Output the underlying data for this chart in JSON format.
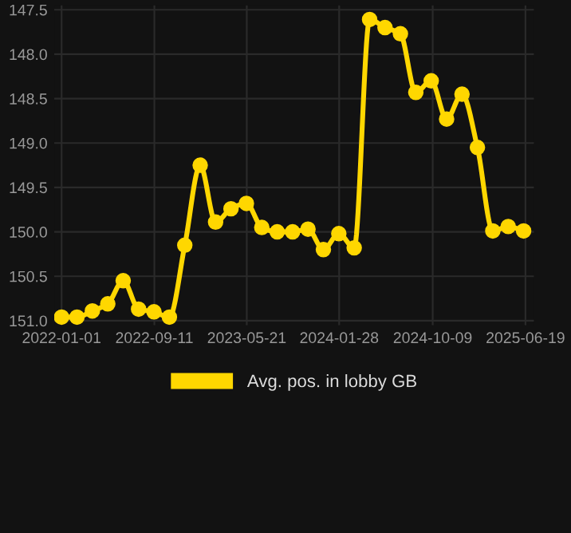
{
  "chart_data": {
    "type": "line",
    "x": [
      "2022-01-01",
      "2022-02-12",
      "2022-03-26",
      "2022-05-07",
      "2022-06-18",
      "2022-07-30",
      "2022-09-10",
      "2022-10-22",
      "2022-12-03",
      "2023-01-14",
      "2023-02-25",
      "2023-04-08",
      "2023-05-20",
      "2023-07-01",
      "2023-08-12",
      "2023-09-23",
      "2023-11-04",
      "2023-12-16",
      "2024-01-27",
      "2024-03-09",
      "2024-04-20",
      "2024-06-01",
      "2024-07-13",
      "2024-08-24",
      "2024-10-05",
      "2024-11-16",
      "2024-12-28",
      "2025-02-08",
      "2025-03-22",
      "2025-05-03",
      "2025-06-14"
    ],
    "series": [
      {
        "name": "Avg. pos. in lobby GB",
        "color": "#ffd700",
        "values": [
          150.96,
          150.96,
          150.89,
          150.81,
          150.55,
          150.87,
          150.9,
          150.96,
          150.15,
          149.25,
          149.89,
          149.74,
          149.68,
          149.95,
          150.0,
          150.0,
          149.97,
          150.2,
          150.02,
          150.18,
          147.61,
          147.7,
          147.77,
          148.43,
          148.3,
          148.73,
          148.45,
          149.05,
          149.99,
          149.94,
          149.99
        ]
      }
    ],
    "ylim": [
      151.05,
      147.45
    ],
    "yticks": [
      {
        "value": 147.5,
        "label": "147.5"
      },
      {
        "value": 148.0,
        "label": "148.0"
      },
      {
        "value": 148.5,
        "label": "148.5"
      },
      {
        "value": 149.0,
        "label": "149.0"
      },
      {
        "value": 149.5,
        "label": "149.5"
      },
      {
        "value": 150.0,
        "label": "150.0"
      },
      {
        "value": 150.5,
        "label": "150.5"
      },
      {
        "value": 151.0,
        "label": "151.0"
      }
    ],
    "xlim": [
      "2021-12-12",
      "2025-07-12"
    ],
    "xticks": [
      "2022-01-01",
      "2022-09-11",
      "2023-05-21",
      "2024-01-28",
      "2024-10-09",
      "2025-06-19"
    ],
    "grid": true,
    "legend": "bottom",
    "marker": "circle",
    "line_style": "solid"
  }
}
